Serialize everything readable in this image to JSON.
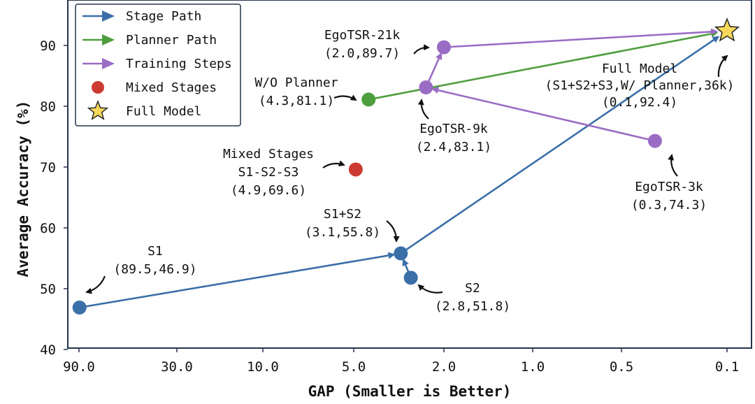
{
  "chart_data": {
    "type": "scatter",
    "xlabel": "GAP (Smaller is Better)",
    "ylabel": "Average Accuracy (%)",
    "x_scale": "log",
    "x_reversed": true,
    "xlim": [
      100,
      0.09
    ],
    "ylim": [
      40,
      97
    ],
    "x_ticks": [
      90,
      30,
      10,
      5,
      2,
      1,
      0.5,
      0.1
    ],
    "x_tick_labels": [
      "90.0",
      "30.0",
      "10.0",
      "5.0",
      "2.0",
      "1.0",
      "0.5",
      "0.1"
    ],
    "y_ticks": [
      40,
      50,
      60,
      70,
      80,
      90
    ],
    "y_tick_labels": [
      "40",
      "50",
      "60",
      "70",
      "80",
      "90"
    ],
    "grid": false,
    "legend_position": "top-left",
    "legend": [
      {
        "label": "Stage Path",
        "marker": "arrow",
        "color": "#3b6fa8"
      },
      {
        "label": "Planner Path",
        "marker": "arrow",
        "color": "#4e9e3e"
      },
      {
        "label": "Training Steps",
        "marker": "arrow",
        "color": "#9a6cc4"
      },
      {
        "label": "Mixed Stages",
        "marker": "circle",
        "color": "#cc3b32"
      },
      {
        "label": "Full Model",
        "marker": "star",
        "color": "#f7d85a"
      }
    ],
    "points": [
      {
        "id": "s1",
        "x": 89.5,
        "y": 46.9,
        "color": "#3b6fa8",
        "marker": "circle",
        "label": [
          "S1",
          "(89.5,46.9)"
        ]
      },
      {
        "id": "s2",
        "x": 2.8,
        "y": 51.8,
        "color": "#3b6fa8",
        "marker": "circle",
        "label": [
          "S2",
          "(2.8,51.8)"
        ]
      },
      {
        "id": "s1s2",
        "x": 3.1,
        "y": 55.8,
        "color": "#3b6fa8",
        "marker": "circle",
        "label": [
          "S1+S2",
          "(3.1,55.8)"
        ]
      },
      {
        "id": "mixed",
        "x": 4.9,
        "y": 69.6,
        "color": "#cc3b32",
        "marker": "circle",
        "label": [
          "Mixed Stages",
          "S1-S2-S3",
          "(4.9,69.6)"
        ]
      },
      {
        "id": "woplanner",
        "x": 4.3,
        "y": 81.1,
        "color": "#4e9e3e",
        "marker": "circle",
        "label": [
          "W/O Planner",
          "(4.3,81.1)"
        ]
      },
      {
        "id": "ego9k",
        "x": 2.4,
        "y": 83.1,
        "color": "#9a6cc4",
        "marker": "circle",
        "label": [
          "EgoTSR-9k",
          "(2.4,83.1)"
        ]
      },
      {
        "id": "ego21k",
        "x": 2.0,
        "y": 89.7,
        "color": "#9a6cc4",
        "marker": "circle",
        "label": [
          "EgoTSR-21k",
          "(2.0,89.7)"
        ]
      },
      {
        "id": "ego3k",
        "x": 0.3,
        "y": 74.3,
        "color": "#9a6cc4",
        "marker": "circle",
        "label": [
          "EgoTSR-3k",
          "(0.3,74.3)"
        ]
      },
      {
        "id": "full",
        "x": 0.1,
        "y": 92.4,
        "color": "#f7d85a",
        "marker": "star",
        "label": [
          "Full Model",
          "(S1+S2+S3,W/ Planner,36k)",
          "(0.1,92.4)"
        ]
      }
    ],
    "paths": [
      {
        "name": "Stage Path",
        "color": "#3b6fa8",
        "from": "s1",
        "to": "s1s2"
      },
      {
        "name": "Stage Path",
        "color": "#3b6fa8",
        "from": "s2",
        "to": "s1s2"
      },
      {
        "name": "Stage Path",
        "color": "#3b6fa8",
        "from": "s1s2",
        "to": "full"
      },
      {
        "name": "Planner Path",
        "color": "#4e9e3e",
        "from": "woplanner",
        "to": "full"
      },
      {
        "name": "Training Steps",
        "color": "#9a6cc4",
        "from": "ego3k",
        "to": "ego9k"
      },
      {
        "name": "Training Steps",
        "color": "#9a6cc4",
        "from": "ego9k",
        "to": "ego21k"
      },
      {
        "name": "Training Steps",
        "color": "#9a6cc4",
        "from": "ego21k",
        "to": "full"
      }
    ]
  }
}
